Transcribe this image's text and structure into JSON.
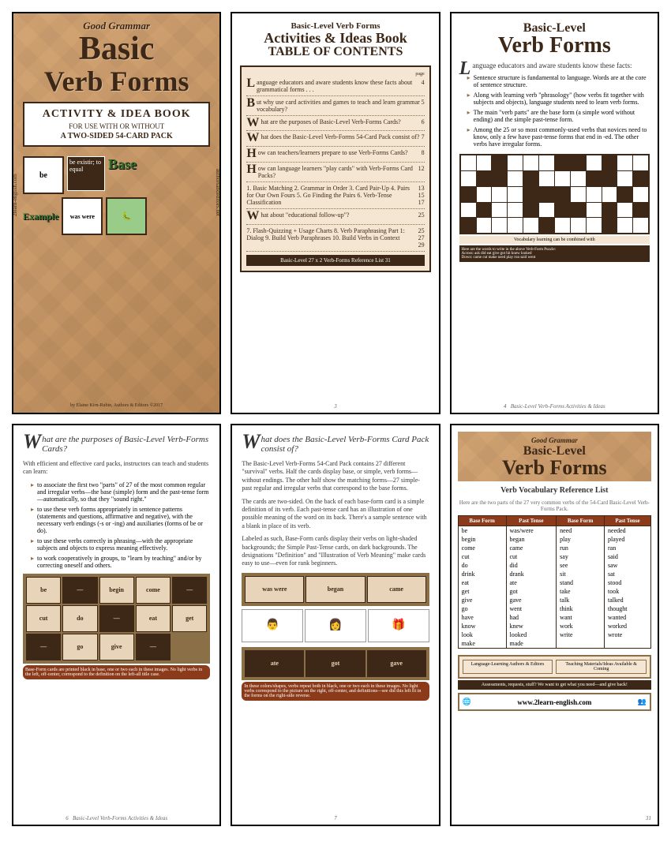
{
  "colors": {
    "tan": "#d4a574",
    "brown": "#3d2817",
    "darkbrown": "#8b6f47",
    "rust": "#8b3a1a",
    "cream": "#f5e6d3",
    "green": "#2d6b2d"
  },
  "cover": {
    "subtitle": "Good Grammar",
    "title1": "Basic",
    "title2": "Verb Forms",
    "box_line1": "ACTIVITY & IDEA BOOK",
    "box_line2": "FOR USE WITH OR WITHOUT",
    "box_line3": "A TWO-SIDED 54-CARD PACK",
    "card_be": "be",
    "card_was": "was were",
    "base_label": "Base",
    "example_label": "Example",
    "dark_text": "be existir; to equal",
    "side_left": "2learn-english.com",
    "side_right": "authorsandeditors.net",
    "byline": "by Elaine Kirn-Rubin, Authors & Editors ©2017"
  },
  "toc": {
    "t1": "Basic-Level Verb Forms",
    "t2": "Activities & Ideas Book",
    "t3": "TABLE OF CONTENTS",
    "page_label": "page",
    "items": [
      {
        "cap": "L",
        "text": "anguage educators and aware students know these facts about grammatical forms . . .",
        "pg": "4"
      },
      {
        "cap": "B",
        "text": "ut why use card activities and games to teach and learn grammar vocabulary?",
        "pg": "5"
      },
      {
        "cap": "W",
        "text": "hat are the purposes of Basic-Level Verb-Forms Cards?",
        "pg": "6"
      },
      {
        "cap": "W",
        "text": "hat does the Basic-Level Verb-Forms 54-Card Pack consist of?",
        "pg": "7"
      },
      {
        "cap": "H",
        "text": "ow can teachers/learners prepare to use Verb-Forms Cards?",
        "pg": "8"
      },
      {
        "cap": "H",
        "text": "ow can language learners \"play cards\" with Verb-Forms Card Packs?",
        "pg": "12"
      },
      {
        "cap": "",
        "text": "1. Basic Matching    2. Grammar in Order\n3. Card Pair-Up    4. Pairs for Our Own Fours\n5. Go Finding the Pairs    6. Verb-Tense Classification",
        "pg": "13\n15\n17"
      },
      {
        "cap": "W",
        "text": "hat about \"educational follow-up\"?",
        "pg": "25"
      },
      {
        "cap": "",
        "text": "7. Flash-Quizzing + Usage Charts    8. Verb Paraphrasing\nPart 1: Dialog    9. Build Verb Paraphrases\n10. Build Verbs in Context",
        "pg": "25\n27\n29"
      }
    ],
    "footer": "Basic-Level 27 x 2 Verb-Forms Reference List     31",
    "page_num": "3"
  },
  "intro": {
    "t1": "Basic-Level",
    "t2": "Verb Forms",
    "lead_cap": "L",
    "lead": "anguage educators and aware students know these facts:",
    "bullets": [
      "Sentence structure is fundamental to language. Words are at the core of sentence structure.",
      "Along with learning verb \"phrasology\" (how verbs fit together with subjects and objects), language students need to learn verb forms.",
      "The main \"verb parts\" are the base form (a simple word without ending) and the simple past-tense form.",
      "Among the 25 or so most commonly-used verbs that novices need to know, only a few have past-tense forms that end in -ed. The other verbs have irregular forms."
    ],
    "cw_note": "Vocabulary learning can be combined with",
    "cw_footer": "Here are the words to write in the above Verb-Form Puzzle:\nAcross: ask did eat give got hit knew looked\nDown: came cut make need play run said went",
    "page_num": "4",
    "footer": "Basic-Level Verb-Forms Activities & Ideas"
  },
  "page6": {
    "title_cap": "W",
    "title": "hat are the purposes of Basic-Level Verb-Forms Cards?",
    "intro": "With efficient and effective card packs, instructors can teach and students can learn:",
    "bullets": [
      "to associate the first two \"parts\" of 27 of the most common regular and irregular verbs—the base (simple) form and the past-tense form—automatically, so that they \"sound right.\"",
      "to use these verb forms appropriately in sentence patterns (statements and questions, affirmative and negative), with the necessary verb endings (-s or -ing) and auxiliaries (forms of be or do).",
      "to use these verbs correctly in phrasing—with the appropriate subjects and objects to express meaning effectively.",
      "to work cooperatively in groups, to \"learn by teaching\" and/or by correcting oneself and others."
    ],
    "cards": [
      "be",
      "begin",
      "come",
      "cut",
      "do",
      "eat",
      "get",
      "go",
      "give"
    ],
    "banner": "Base-Form cards are printed black in base, one or two each in these images. No light verbs in the left, off-center, correspond to the definition on the left-all title case.",
    "page_num": "6",
    "footer": "Basic-Level Verb-Forms Activities & Ideas"
  },
  "page7": {
    "title_cap": "W",
    "title": "hat does the Basic-Level Verb-Forms Card Pack consist of?",
    "paras": [
      "The Basic-Level Verb-Forms 54-Card Pack contains 27 different \"survival\" verbs. Half the cards display base, or simple, verb forms—without endings. The other half show the matching forms—27 simple-past regular and irregular verbs that correspond to the base forms.",
      "The cards are two-sided. On the back of each base-form card is a simple definition of its verb. Each past-tense card has an illustration of one possible meaning of the word on its back. There's a sample sentence with a blank in place of its verb.",
      "Labeled as such, Base-Form cards display their verbs on light-shaded backgrounds; the Simple Past-Tense cards, on dark backgrounds. The designations \"Definition\" and \"Illustration of Verb Meaning\" make cards easy to use—even for rank beginners."
    ],
    "cards_light": [
      "was were",
      "began",
      "came"
    ],
    "cards_dark": [
      "ate",
      "got",
      "gave"
    ],
    "banner": "In these colors/shapes, verbs repeat both in black, one or two each in these images. No light verbs correspond to the picture on the right, off-center, and definitions—see did this left fit in the forms on the right-side reverse.",
    "page_num": "7"
  },
  "ref": {
    "subtitle": "Good Grammar",
    "t1": "Basic-Level",
    "t2": "Verb Forms",
    "subtitle2": "Verb Vocabulary Reference List",
    "note": "Here are the two parts of the 27 very common verbs of the 54-Card Basic-Level Verb-Forms Pack.",
    "headers": [
      "Base Form",
      "Past Tense",
      "Base Form",
      "Past Tense"
    ],
    "rows": [
      [
        "be",
        "was/were",
        "need",
        "needed"
      ],
      [
        "begin",
        "began",
        "play",
        "played"
      ],
      [
        "come",
        "came",
        "run",
        "ran"
      ],
      [
        "cut",
        "cut",
        "say",
        "said"
      ],
      [
        "do",
        "did",
        "see",
        "saw"
      ],
      [
        "drink",
        "drank",
        "sit",
        "sat"
      ],
      [
        "eat",
        "ate",
        "stand",
        "stood"
      ],
      [
        "get",
        "got",
        "take",
        "took"
      ],
      [
        "give",
        "gave",
        "talk",
        "talked"
      ],
      [
        "go",
        "went",
        "think",
        "thought"
      ],
      [
        "have",
        "had",
        "want",
        "wanted"
      ],
      [
        "know",
        "knew",
        "work",
        "worked"
      ],
      [
        "look",
        "looked",
        "write",
        "wrote"
      ],
      [
        "make",
        "made",
        "",
        ""
      ]
    ],
    "promo1": "Language-Learning Authors & Editors",
    "promo2": "Teaching Materials/Ideas Available & Coming",
    "promo3": "Assessments, requests, stuff?\nWe want to get what you need—and give back!",
    "url": "www.2learn-english.com",
    "page_num": "31"
  }
}
